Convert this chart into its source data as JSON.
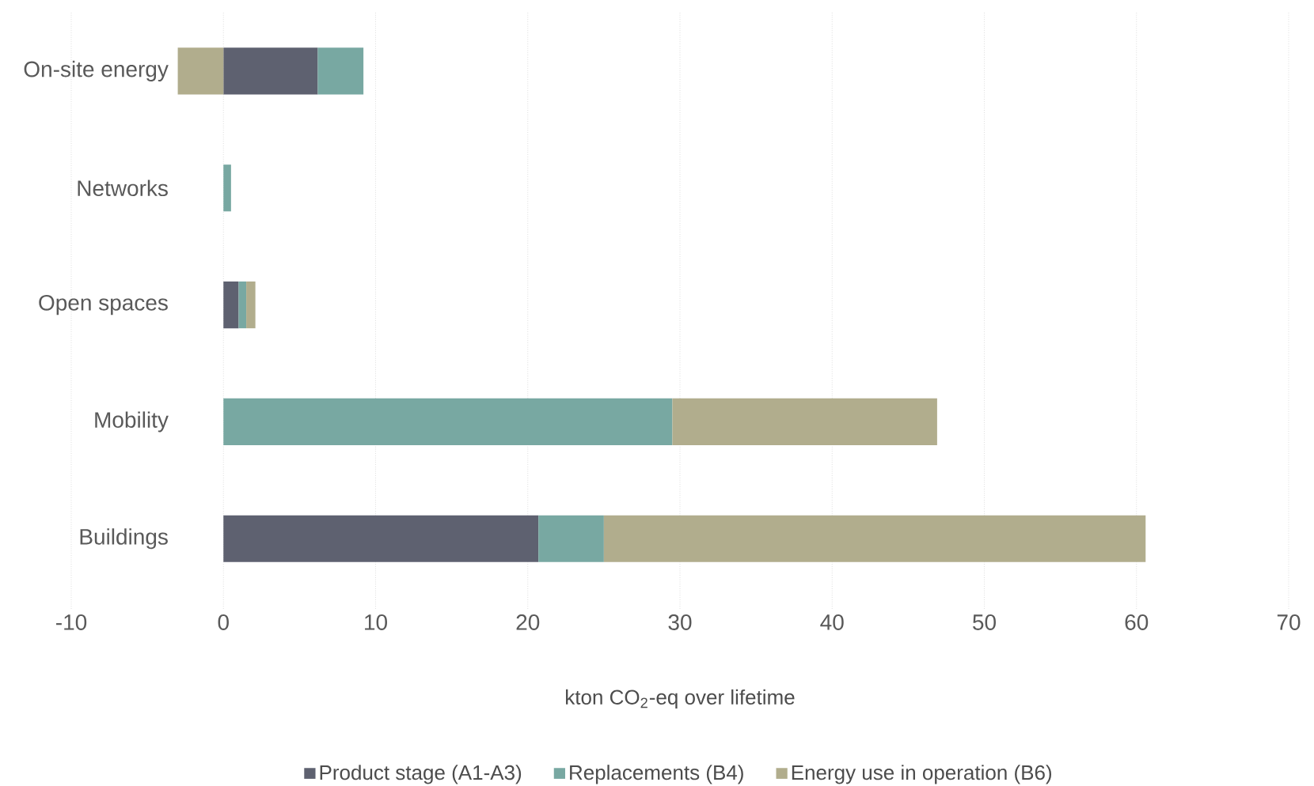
{
  "chart_data": {
    "type": "bar",
    "orientation": "horizontal",
    "stacked": true,
    "xlabel": "kton CO$_{2}$-eq over lifetime",
    "categories": [
      "On-site energy",
      "Networks",
      "Open spaces",
      "Mobility",
      "Buildings"
    ],
    "series": [
      {
        "name": "Product stage (A1-A3)",
        "color": "#5e6170",
        "values": [
          6.2,
          0,
          1.0,
          0,
          20.7
        ]
      },
      {
        "name": "Replacements (B4)",
        "color": "#78a8a2",
        "values": [
          3.0,
          0.5,
          0.5,
          29.5,
          4.3
        ]
      },
      {
        "name": "Energy use in operation (B6)",
        "color": "#b1ad8d",
        "values": [
          -3.0,
          0,
          0.6,
          17.4,
          35.6
        ]
      }
    ],
    "xlim": [
      -10,
      70
    ],
    "xticks": [
      -10,
      0,
      10,
      20,
      30,
      40,
      50,
      60,
      70
    ],
    "grid": "x",
    "legend": "bottom"
  }
}
